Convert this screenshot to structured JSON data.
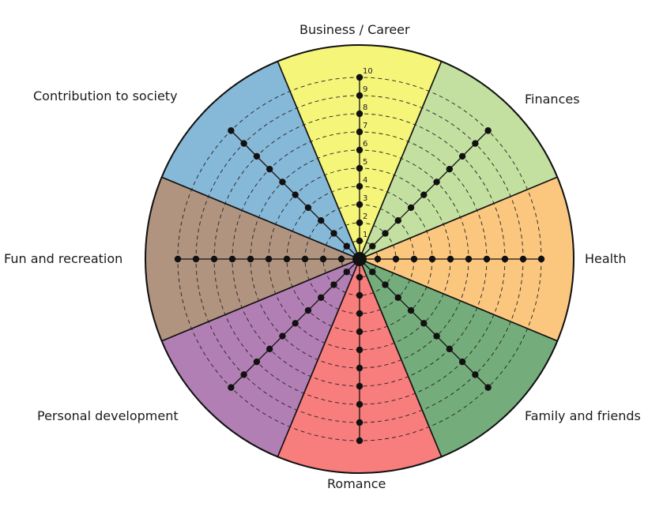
{
  "wheel": {
    "max_level": 10,
    "level_numbers": [
      "1",
      "2",
      "3",
      "4",
      "5",
      "6",
      "7",
      "8",
      "9",
      "10"
    ],
    "segments": [
      {
        "id": "business",
        "label": "Business / Career",
        "color": "#f5f57a"
      },
      {
        "id": "finances",
        "label": "Finances",
        "color": "#c3e0a0"
      },
      {
        "id": "health",
        "label": "Health",
        "color": "#fbc77f"
      },
      {
        "id": "family",
        "label": "Family and friends",
        "color": "#74ad7b"
      },
      {
        "id": "romance",
        "label": "Romance",
        "color": "#f87d7d"
      },
      {
        "id": "personal",
        "label": "Personal development",
        "color": "#b27fb5"
      },
      {
        "id": "fun",
        "label": "Fun and recreation",
        "color": "#b19480"
      },
      {
        "id": "contribution",
        "label": "Contribution to society",
        "color": "#86b8d8"
      }
    ]
  }
}
